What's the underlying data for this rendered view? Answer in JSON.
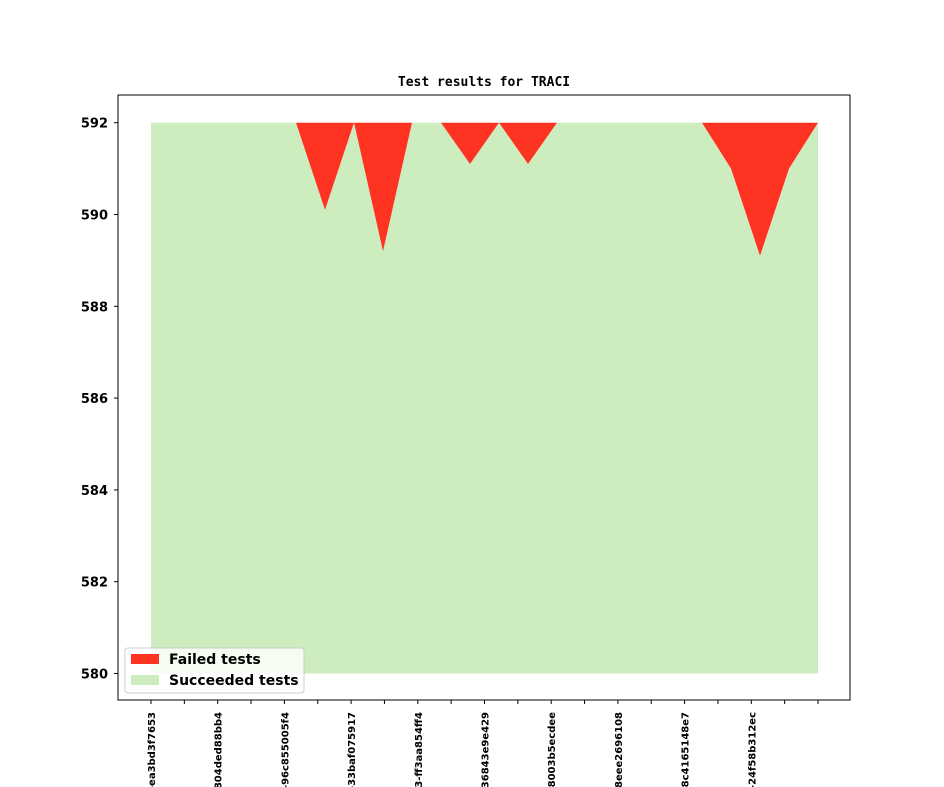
{
  "chart_data": {
    "type": "area",
    "title": "Test results for TRACI",
    "xlabel": "",
    "ylabel": "",
    "ylim": [
      579.5,
      592.6
    ],
    "yticks": [
      580,
      582,
      584,
      586,
      588,
      590,
      592
    ],
    "x_tick_labels": [
      "-ea3bd3f7653",
      "",
      "804ded88bb4",
      "",
      "-96c855005f4",
      "",
      "-33baf075917",
      "",
      "3-ff3aa854ff4",
      "",
      "36843e9e429",
      "",
      "8003b5ecdee",
      "",
      "8eee2696108",
      "",
      "8c4165148e7",
      "",
      "-24f58b312ec",
      "",
      ""
    ],
    "series": [
      {
        "name": "Failed tests",
        "color": "#ff3322",
        "values": [
          0,
          0,
          0,
          0,
          0,
          0,
          1.9,
          0,
          2.8,
          0,
          0,
          0.9,
          0,
          0.9,
          0,
          0,
          0,
          0,
          0,
          0,
          1.0,
          2.9,
          1.0,
          0
        ]
      },
      {
        "name": "Succeeded tests",
        "color": "#ceedbe",
        "values": [
          592,
          592,
          592,
          592,
          592,
          592,
          590.1,
          592,
          589.2,
          592,
          592,
          591.1,
          592,
          591.1,
          592,
          592,
          592,
          592,
          592,
          592,
          591.0,
          589.1,
          591.0,
          592
        ]
      }
    ],
    "legend": {
      "position": "lower-left",
      "entries": [
        "Failed tests",
        "Succeeded tests"
      ]
    },
    "grid": false
  }
}
